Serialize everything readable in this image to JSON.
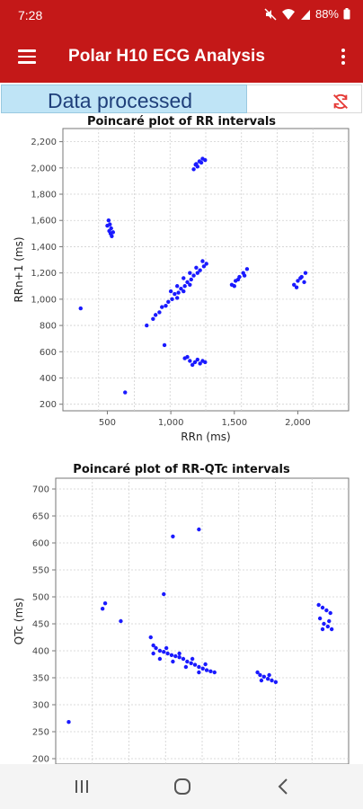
{
  "status_bar": {
    "time": "7:28",
    "battery": "88%",
    "icons": [
      "mute-icon",
      "wifi-icon",
      "signal-icon",
      "battery-icon"
    ]
  },
  "app_bar": {
    "title": "Polar H10 ECG Analysis",
    "menu_icon": "hamburger-menu-icon",
    "overflow_icon": "more-vert-icon"
  },
  "status_row": {
    "message": "Data processed",
    "sync_icon": "sync-disabled-icon",
    "colors": {
      "message_bg": "#bfe4f6",
      "message_text": "#1f3f7a",
      "sync_icon": "#e53935"
    }
  },
  "nav_bar": {
    "icons": [
      "recent-apps-icon",
      "home-icon",
      "back-icon"
    ]
  },
  "colors": {
    "brand": "#c41818",
    "points": "#1a1aff"
  },
  "chart_data": [
    {
      "type": "scatter",
      "title": "Poincaré plot of RR intervals",
      "xlabel": "RRn (ms)",
      "ylabel": "RRn+1 (ms)",
      "xlim": [
        150,
        2400
      ],
      "ylim": [
        150,
        2300
      ],
      "xticks": [
        500,
        1000,
        1500,
        2000
      ],
      "xtick_labels": [
        "500",
        "1,000",
        "1,500",
        "2,000"
      ],
      "yticks": [
        200,
        400,
        600,
        800,
        1000,
        1200,
        1400,
        1600,
        1800,
        2000,
        2200
      ],
      "ytick_labels": [
        "200",
        "400",
        "600",
        "800",
        "1,000",
        "1,200",
        "1,400",
        "1,600",
        "1,800",
        "2,000",
        "2,200"
      ],
      "grid": true,
      "series": [
        {
          "points": [
            [
              1200,
              2030
            ],
            [
              1225,
              2050
            ],
            [
              1250,
              2070
            ],
            [
              1180,
              1990
            ],
            [
              1210,
              2010
            ],
            [
              1240,
              2040
            ],
            [
              1270,
              2060
            ],
            [
              1195,
              2025
            ],
            [
              510,
              1600
            ],
            [
              520,
              1570
            ],
            [
              530,
              1540
            ],
            [
              545,
              1510
            ],
            [
              500,
              1560
            ],
            [
              515,
              1520
            ],
            [
              535,
              1480
            ],
            [
              525,
              1500
            ],
            [
              290,
              930
            ],
            [
              640,
              290
            ],
            [
              950,
              650
            ],
            [
              810,
              800
            ],
            [
              860,
              850
            ],
            [
              910,
              900
            ],
            [
              960,
              950
            ],
            [
              1010,
              1000
            ],
            [
              1060,
              1050
            ],
            [
              1110,
              1100
            ],
            [
              1160,
              1150
            ],
            [
              1210,
              1200
            ],
            [
              1260,
              1250
            ],
            [
              880,
              880
            ],
            [
              930,
              940
            ],
            [
              980,
              980
            ],
            [
              1030,
              1040
            ],
            [
              1080,
              1080
            ],
            [
              1130,
              1130
            ],
            [
              1180,
              1180
            ],
            [
              1230,
              1220
            ],
            [
              1280,
              1270
            ],
            [
              1050,
              1100
            ],
            [
              1100,
              1160
            ],
            [
              1150,
              1200
            ],
            [
              1200,
              1240
            ],
            [
              1000,
              1060
            ],
            [
              1250,
              1290
            ],
            [
              1150,
              1110
            ],
            [
              1100,
              1060
            ],
            [
              1050,
              1010
            ],
            [
              1480,
              1110
            ],
            [
              1510,
              1140
            ],
            [
              1540,
              1170
            ],
            [
              1570,
              1200
            ],
            [
              1600,
              1230
            ],
            [
              1500,
              1100
            ],
            [
              1530,
              1150
            ],
            [
              1580,
              1180
            ],
            [
              1970,
              1110
            ],
            [
              2000,
              1140
            ],
            [
              2030,
              1170
            ],
            [
              2060,
              1200
            ],
            [
              1990,
              1090
            ],
            [
              2020,
              1160
            ],
            [
              2050,
              1130
            ],
            [
              1110,
              550
            ],
            [
              1150,
              530
            ],
            [
              1190,
              520
            ],
            [
              1230,
              510
            ],
            [
              1270,
              520
            ],
            [
              1130,
              560
            ],
            [
              1210,
              540
            ],
            [
              1170,
              500
            ],
            [
              1250,
              530
            ]
          ]
        }
      ]
    },
    {
      "type": "scatter",
      "title": "Poincaré plot of RR-QTc intervals",
      "xlabel": "",
      "ylabel": "QTc (ms)",
      "xlim": [
        150,
        2400
      ],
      "ylim": [
        190,
        720
      ],
      "xticks": [],
      "xtick_labels": [],
      "yticks": [
        200,
        250,
        300,
        350,
        400,
        450,
        500,
        550,
        600,
        650,
        700
      ],
      "ytick_labels": [
        "200",
        "250",
        "300",
        "350",
        "400",
        "450",
        "500",
        "550",
        "600",
        "650",
        "700"
      ],
      "grid": true,
      "series": [
        {
          "points": [
            [
              250,
              268
            ],
            [
              530,
              488
            ],
            [
              510,
              478
            ],
            [
              650,
              455
            ],
            [
              1050,
              612
            ],
            [
              1250,
              625
            ],
            [
              980,
              505
            ],
            [
              880,
              425
            ],
            [
              900,
              410
            ],
            [
              920,
              405
            ],
            [
              950,
              400
            ],
            [
              980,
              398
            ],
            [
              1010,
              395
            ],
            [
              1040,
              392
            ],
            [
              1070,
              390
            ],
            [
              1100,
              388
            ],
            [
              1130,
              385
            ],
            [
              1160,
              380
            ],
            [
              1190,
              377
            ],
            [
              1220,
              374
            ],
            [
              1250,
              370
            ],
            [
              1280,
              367
            ],
            [
              1310,
              364
            ],
            [
              1340,
              362
            ],
            [
              1370,
              360
            ],
            [
              900,
              395
            ],
            [
              950,
              385
            ],
            [
              1000,
              405
            ],
            [
              1050,
              380
            ],
            [
              1100,
              395
            ],
            [
              1150,
              370
            ],
            [
              1200,
              385
            ],
            [
              1250,
              360
            ],
            [
              1300,
              375
            ],
            [
              1700,
              360
            ],
            [
              1720,
              355
            ],
            [
              1750,
              352
            ],
            [
              1780,
              348
            ],
            [
              1810,
              345
            ],
            [
              1840,
              342
            ],
            [
              1730,
              345
            ],
            [
              1790,
              355
            ],
            [
              2170,
              485
            ],
            [
              2200,
              480
            ],
            [
              2230,
              475
            ],
            [
              2260,
              470
            ],
            [
              2180,
              460
            ],
            [
              2210,
              450
            ],
            [
              2240,
              445
            ],
            [
              2270,
              440
            ],
            [
              2200,
              440
            ],
            [
              2250,
              455
            ]
          ]
        }
      ]
    }
  ]
}
